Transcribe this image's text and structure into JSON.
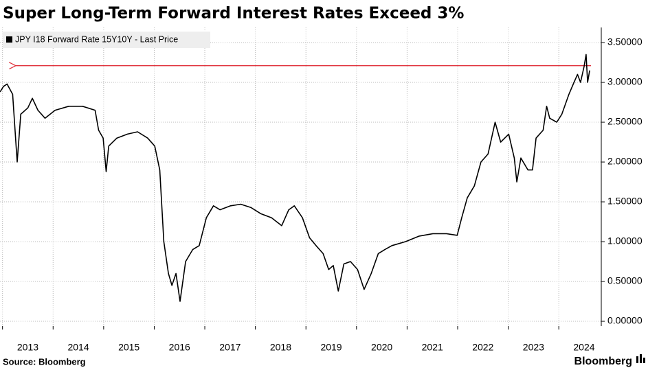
{
  "chart_data": {
    "type": "line",
    "title": "Super Long-Term Forward Interest Rates Exceed 3%",
    "source": "Source: Bloomberg",
    "brand": "Bloomberg",
    "xlim": [
      2012.95,
      2024.84
    ],
    "xticks": [
      2013,
      2014,
      2015,
      2016,
      2017,
      2018,
      2019,
      2020,
      2021,
      2022,
      2023,
      2024
    ],
    "ylim": [
      -0.06,
      3.69
    ],
    "yticks": [
      {
        "value": 0,
        "label": "0.00000"
      },
      {
        "value": 0.5,
        "label": "0.50000"
      },
      {
        "value": 1,
        "label": "1.00000"
      },
      {
        "value": 1.5,
        "label": "1.50000"
      },
      {
        "value": 2,
        "label": "2.00000"
      },
      {
        "value": 2.5,
        "label": "2.50000"
      },
      {
        "value": 3,
        "label": "3.00000"
      },
      {
        "value": 3.5,
        "label": "3.50000"
      }
    ],
    "grid": true,
    "reference_line": {
      "value": 3.21,
      "color": "#e0303a"
    },
    "x": [
      2012.95,
      2013.02,
      2013.09,
      2013.2,
      2013.29,
      2013.36,
      2013.5,
      2013.59,
      2013.7,
      2013.84,
      2014.04,
      2014.31,
      2014.58,
      2014.83,
      2014.9,
      2014.99,
      2015.05,
      2015.1,
      2015.26,
      2015.47,
      2015.67,
      2015.87,
      2016.01,
      2016.11,
      2016.19,
      2016.28,
      2016.35,
      2016.43,
      2016.51,
      2016.62,
      2016.76,
      2016.89,
      2017.03,
      2017.17,
      2017.3,
      2017.51,
      2017.71,
      2017.91,
      2018.11,
      2018.32,
      2018.52,
      2018.66,
      2018.77,
      2018.93,
      2019.07,
      2019.2,
      2019.34,
      2019.45,
      2019.54,
      2019.64,
      2019.75,
      2019.88,
      2020.02,
      2020.15,
      2020.29,
      2020.43,
      2020.56,
      2020.7,
      2020.97,
      2021.24,
      2021.51,
      2021.78,
      2021.99,
      2022.08,
      2022.19,
      2022.33,
      2022.46,
      2022.6,
      2022.74,
      2022.85,
      2023.01,
      2023.12,
      2023.17,
      2023.25,
      2023.39,
      2023.48,
      2023.55,
      2023.69,
      2023.76,
      2023.82,
      2023.96,
      2024.06,
      2024.2,
      2024.3,
      2024.37,
      2024.43,
      2024.5,
      2024.54,
      2024.57,
      2024.61
    ],
    "series": [
      {
        "name": "JPY I18 Forward Rate 15Y10Y - Last Price",
        "color": "#000000",
        "values": [
          2.88,
          2.95,
          2.98,
          2.85,
          2.0,
          2.6,
          2.68,
          2.8,
          2.65,
          2.55,
          2.65,
          2.7,
          2.7,
          2.65,
          2.4,
          2.3,
          1.88,
          2.2,
          2.3,
          2.35,
          2.38,
          2.3,
          2.2,
          1.9,
          1.0,
          0.6,
          0.45,
          0.6,
          0.25,
          0.75,
          0.9,
          0.95,
          1.3,
          1.45,
          1.4,
          1.45,
          1.47,
          1.43,
          1.35,
          1.3,
          1.2,
          1.4,
          1.45,
          1.3,
          1.05,
          0.95,
          0.85,
          0.65,
          0.7,
          0.38,
          0.72,
          0.75,
          0.65,
          0.4,
          0.6,
          0.85,
          0.9,
          0.95,
          1.0,
          1.07,
          1.1,
          1.1,
          1.08,
          1.3,
          1.55,
          1.7,
          2.0,
          2.1,
          2.5,
          2.25,
          2.35,
          2.05,
          1.75,
          2.05,
          1.9,
          1.9,
          2.3,
          2.4,
          2.7,
          2.55,
          2.5,
          2.6,
          2.85,
          3.0,
          3.1,
          3.0,
          3.2,
          3.35,
          3.0,
          3.15
        ]
      }
    ]
  }
}
